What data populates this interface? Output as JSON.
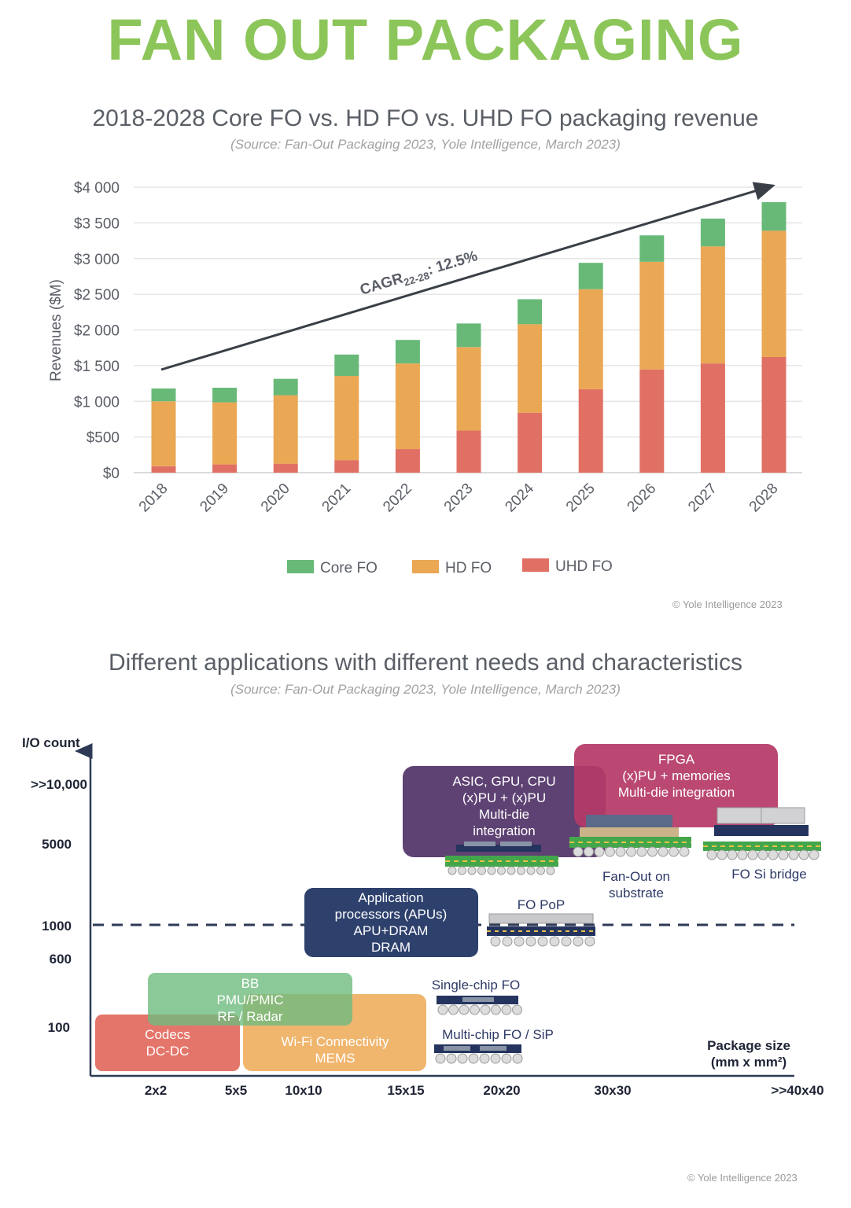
{
  "header": {
    "title": "FAN OUT PACKAGING"
  },
  "chart_data": [
    {
      "type": "bar",
      "stacked": true,
      "title": "2018-2028 Core FO vs. HD FO vs. UHD FO packaging revenue",
      "subtitle": "(Source: Fan-Out Packaging 2023, Yole Intelligence, March 2023)",
      "ylabel": "Revenues ($M)",
      "xlabel": "",
      "ylim": [
        0,
        4000
      ],
      "yticks": [
        0,
        500,
        1000,
        1500,
        2000,
        2500,
        3000,
        3500,
        4000
      ],
      "ytick_labels": [
        "$0",
        "$500",
        "$1 000",
        "$1 500",
        "$2 000",
        "$2 500",
        "$3 000",
        "$3 500",
        "$4 000"
      ],
      "categories": [
        "2018",
        "2019",
        "2020",
        "2021",
        "2022",
        "2023",
        "2024",
        "2025",
        "2026",
        "2027",
        "2028"
      ],
      "series": [
        {
          "name": "UHD FO",
          "color": "#e07063",
          "values": [
            90,
            115,
            125,
            175,
            330,
            590,
            840,
            1170,
            1445,
            1530,
            1620
          ]
        },
        {
          "name": "HD FO",
          "color": "#eaa754",
          "values": [
            910,
            870,
            960,
            1180,
            1200,
            1170,
            1240,
            1400,
            1510,
            1640,
            1770
          ]
        },
        {
          "name": "Core FO",
          "color": "#68b978",
          "values": [
            180,
            205,
            230,
            300,
            330,
            330,
            350,
            370,
            370,
            390,
            400
          ]
        }
      ],
      "legend": [
        "Core FO",
        "HD FO",
        "UHD FO"
      ],
      "legend_position": "bottom",
      "grid": true,
      "annotation": {
        "text": "CAGR",
        "subscript": "22-28",
        "suffix": ": 12.5%"
      },
      "copyright": "© Yole Intelligence 2023"
    },
    {
      "type": "diagram",
      "title": "Different applications with different needs and characteristics",
      "subtitle": "(Source: Fan-Out Packaging 2023, Yole Intelligence, March 2023)",
      "ylabel": "I/O count",
      "xlabel": "Package size",
      "xlabel_unit": "(mm x mm²)",
      "y_ticks": [
        ">>10,000",
        "5000",
        "1000",
        "600",
        "100"
      ],
      "x_ticks": [
        "2x2",
        "5x5",
        "10x10",
        "15x15",
        "20x20",
        "30x30",
        ">>40x40"
      ],
      "reference_line": "1000",
      "regions": [
        {
          "name": "codecs",
          "lines": [
            "Codecs",
            "DC-DC"
          ],
          "color": "#e4756a"
        },
        {
          "name": "wifi",
          "lines": [
            "Wi-Fi Connectivity",
            "MEMS"
          ],
          "color": "#efb062"
        },
        {
          "name": "bb",
          "lines": [
            "BB",
            "PMU/PMIC",
            "RF / Radar"
          ],
          "color": "#6fbb7e"
        },
        {
          "name": "apu",
          "lines": [
            "Application",
            "processors (APUs)",
            "APU+DRAM",
            "DRAM"
          ],
          "color": "#2e416d"
        },
        {
          "name": "asic",
          "lines": [
            "ASIC, GPU, CPU",
            "(x)PU + (x)PU",
            "Multi-die",
            "integration"
          ],
          "color": "#5e4273"
        },
        {
          "name": "fpga",
          "lines": [
            "FPGA",
            "(x)PU + memories",
            "Multi-die integration"
          ],
          "color": "#b53a68"
        }
      ],
      "package_labels": {
        "single_chip": "Single-chip FO",
        "multi_chip": "Multi-chip FO / SiP",
        "fo_pop": "FO PoP",
        "fo_substrate": [
          "Fan-Out on",
          "substrate"
        ],
        "fo_si_bridge": "FO Si bridge"
      },
      "copyright": "© Yole Intelligence 2023"
    }
  ]
}
